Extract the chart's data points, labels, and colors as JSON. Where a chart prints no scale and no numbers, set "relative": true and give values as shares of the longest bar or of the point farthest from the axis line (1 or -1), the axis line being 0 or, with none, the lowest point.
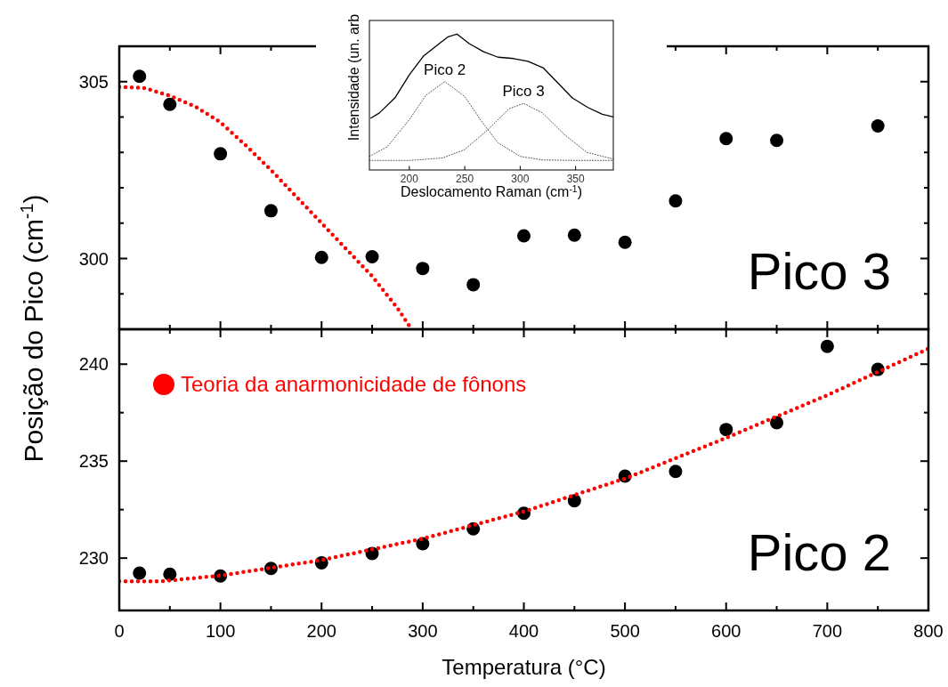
{
  "chart_data": [
    {
      "type": "scatter",
      "xlim": [
        0,
        800
      ],
      "xticks": [
        0,
        {
          "value": 50,
          "label": null
        },
        100,
        {
          "value": 150,
          "label": null
        },
        200,
        {
          "value": 250,
          "label": null
        },
        300,
        {
          "value": 350,
          "label": null
        },
        400,
        {
          "value": 450,
          "label": null
        },
        500,
        {
          "value": 550,
          "label": null
        },
        600,
        {
          "value": 650,
          "label": null
        },
        700,
        {
          "value": 750,
          "label": null
        },
        800
      ],
      "ylim": [
        298,
        306
      ],
      "yticks": [
        {
          "value": 299,
          "label": null
        },
        300,
        {
          "value": 301,
          "label": null
        },
        {
          "value": 302,
          "label": null
        },
        {
          "value": 303,
          "label": null
        },
        {
          "value": 304,
          "label": null
        },
        305
      ],
      "tick_labels": "y",
      "grid": false,
      "annotations": [
        "Pico 3"
      ],
      "series": [
        {
          "color": "#000000",
          "marker": "circle",
          "x": [
            20,
            50,
            100,
            150,
            200,
            250,
            300,
            350,
            400,
            450,
            500,
            550,
            600,
            650,
            750
          ],
          "values": [
            305.15,
            304.36,
            302.96,
            301.35,
            300.03,
            300.05,
            299.72,
            299.26,
            300.64,
            300.66,
            300.46,
            301.63,
            303.39,
            303.34,
            303.75
          ]
        },
        {
          "type": "line",
          "color": "#ff0000",
          "line_style": "dotted",
          "x": [
            0,
            25,
            50,
            75,
            100,
            125,
            150,
            175,
            200,
            225,
            250,
            275,
            289
          ],
          "values": [
            304.85,
            304.82,
            304.6,
            304.3,
            303.85,
            303.2,
            302.5,
            301.75,
            301.0,
            300.25,
            299.5,
            298.6,
            298.0
          ]
        }
      ]
    },
    {
      "type": "line",
      "relative": true,
      "xlabel": "Deslocamento Raman (cm$^{-1}$)",
      "ylabel": "Intensidade (un. arb",
      "xlim": [
        164,
        384
      ],
      "xticks": [
        200,
        250,
        300,
        350
      ],
      "grid": false,
      "series": [
        {
          "color": "#000000",
          "line_style": "solid",
          "x": [
            165,
            173,
            187,
            200,
            213,
            227,
            235,
            243,
            254,
            267,
            280,
            294,
            307,
            321,
            334,
            347,
            361,
            374,
            384
          ],
          "values": [
            0.38,
            0.42,
            0.53,
            0.7,
            0.84,
            0.93,
            0.98,
            1.0,
            0.93,
            0.87,
            0.83,
            0.82,
            0.8,
            0.75,
            0.64,
            0.53,
            0.46,
            0.41,
            0.39
          ]
        },
        {
          "name": "Pico 2",
          "color": "#555555",
          "line_style": "dotted",
          "x": [
            164,
            180,
            200,
            215,
            232,
            250,
            265,
            280,
            300,
            320,
            350,
            384
          ],
          "values": [
            0.1,
            0.17,
            0.37,
            0.55,
            0.65,
            0.54,
            0.36,
            0.2,
            0.1,
            0.074,
            0.07,
            0.07
          ]
        },
        {
          "name": "Pico 3",
          "color": "#555555",
          "line_style": "dotted",
          "x": [
            164,
            200,
            230,
            250,
            270,
            290,
            303,
            320,
            340,
            360,
            384
          ],
          "values": [
            0.07,
            0.07,
            0.088,
            0.15,
            0.29,
            0.45,
            0.49,
            0.42,
            0.26,
            0.13,
            0.08
          ]
        }
      ]
    },
    {
      "type": "scatter",
      "xlabel": "Temperatura (°C)",
      "ylabel": "Posição do Pico (cm$^{-1}$)",
      "xlim": [
        0,
        800
      ],
      "xticks": [
        0,
        {
          "value": 50,
          "label": null
        },
        100,
        {
          "value": 150,
          "label": null
        },
        200,
        {
          "value": 250,
          "label": null
        },
        300,
        {
          "value": 350,
          "label": null
        },
        400,
        {
          "value": 450,
          "label": null
        },
        500,
        {
          "value": 550,
          "label": null
        },
        600,
        {
          "value": 650,
          "label": null
        },
        700,
        {
          "value": 750,
          "label": null
        },
        800
      ],
      "ylim": [
        227.3,
        241.8
      ],
      "yticks": [
        230,
        {
          "value": 232.5,
          "label": null
        },
        235,
        {
          "value": 237.5,
          "label": null
        },
        240
      ],
      "grid": false,
      "legend": "top left",
      "annotations": [
        "Pico 2"
      ],
      "series": [
        {
          "color": "#000000",
          "marker": "circle",
          "x": [
            20,
            50,
            100,
            150,
            200,
            250,
            300,
            350,
            400,
            450,
            500,
            550,
            600,
            650,
            700,
            750
          ],
          "values": [
            229.23,
            229.17,
            229.08,
            229.47,
            229.76,
            230.24,
            230.74,
            231.51,
            232.31,
            232.96,
            234.23,
            234.47,
            236.63,
            236.98,
            240.92,
            239.73
          ]
        },
        {
          "type": "line",
          "name": "Teoria da anarmonicidade de fônons",
          "color": "#ff0000",
          "line_style": "dotted",
          "x": [
            0,
            40,
            100,
            200,
            300,
            400,
            500,
            600,
            700,
            800
          ],
          "values": [
            228.8,
            228.8,
            229.1,
            229.9,
            231.0,
            232.4,
            234.1,
            236.2,
            238.4,
            240.8
          ]
        }
      ]
    }
  ]
}
